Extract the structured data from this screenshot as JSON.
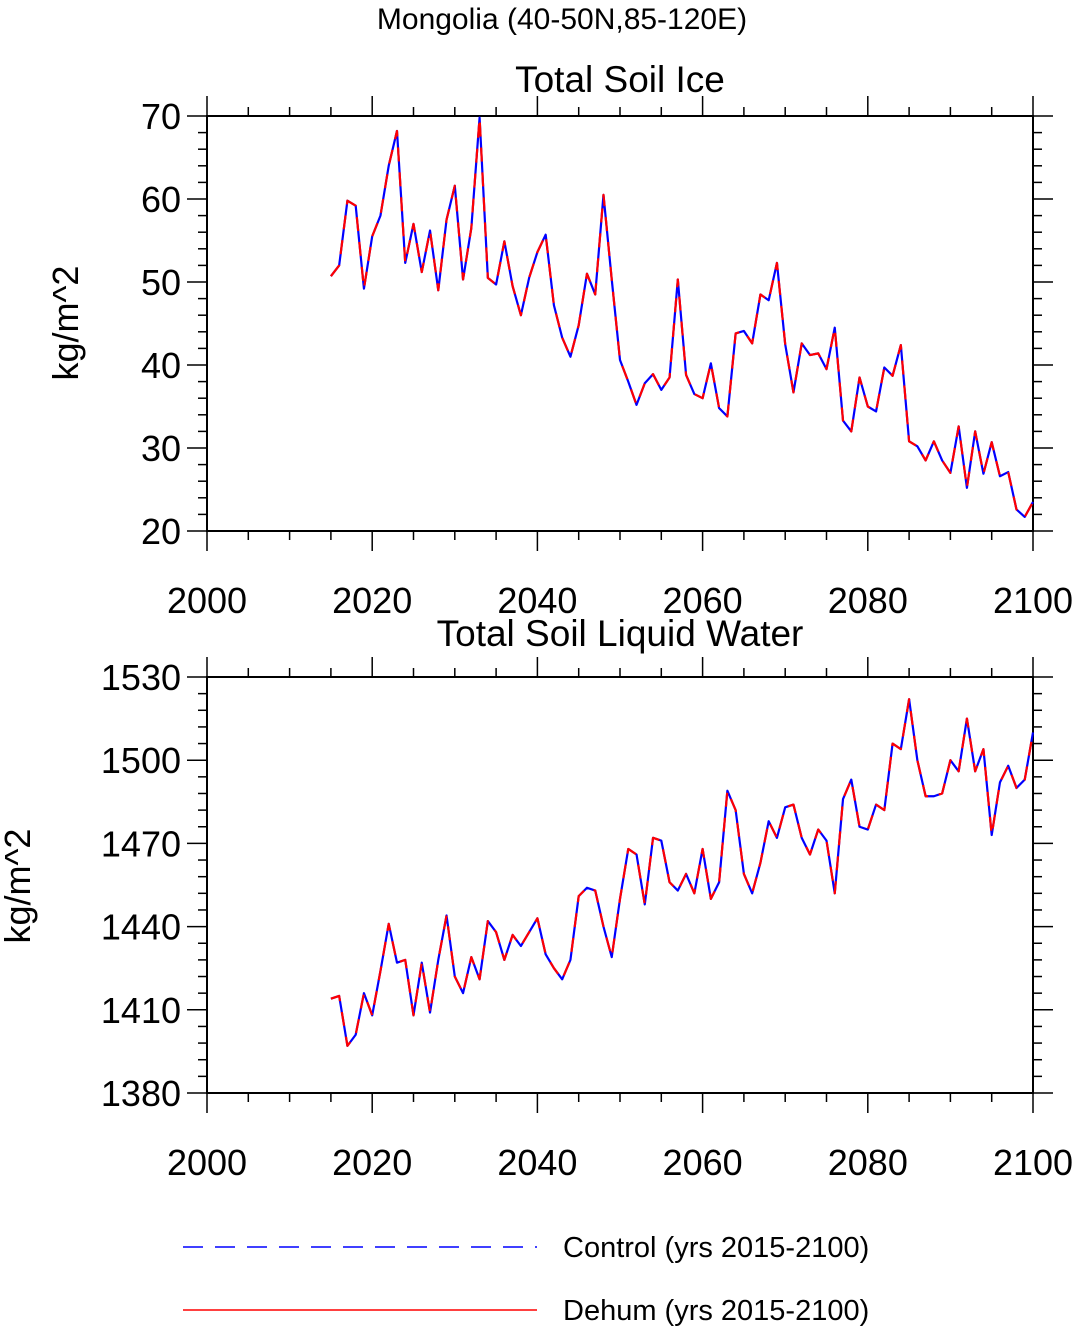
{
  "figure": {
    "title": "Mongolia (40-50N,85-120E)"
  },
  "legend": [
    {
      "label": "Control (yrs 2015-2100)",
      "color": "#0000ff",
      "style": "dashed"
    },
    {
      "label": "Dehum (yrs 2015-2100)",
      "color": "#ff0000",
      "style": "solid"
    }
  ],
  "chart_data": [
    {
      "type": "line",
      "title": "Total Soil Ice",
      "xlabel": "",
      "ylabel": "kg/m^2",
      "xlim": [
        2000,
        2100
      ],
      "ylim": [
        20,
        70
      ],
      "xticks": [
        2000,
        2020,
        2040,
        2060,
        2080,
        2100
      ],
      "yticks": [
        20,
        30,
        40,
        50,
        60,
        70
      ],
      "grid": false,
      "x_start": 2015,
      "x_end": 2100,
      "series": [
        {
          "name": "Control (yrs 2015-2100)",
          "color": "#0000ff",
          "style": "dashed",
          "values": [
            50.7,
            52.0,
            59.8,
            59.2,
            49.2,
            55.5,
            58.0,
            64.0,
            68.2,
            52.3,
            57.0,
            51.2,
            56.2,
            49.0,
            57.5,
            61.6,
            50.3,
            56.5,
            69.8,
            50.5,
            49.7,
            54.9,
            49.5,
            46.0,
            50.5,
            53.6,
            55.7,
            47.2,
            43.3,
            41.0,
            44.8,
            51.0,
            48.5,
            60.5,
            50.3,
            40.6,
            38.0,
            35.2,
            37.8,
            38.9,
            37.0,
            38.5,
            50.3,
            38.8,
            36.5,
            36.0,
            40.2,
            34.8,
            33.8,
            43.8,
            44.1,
            42.6,
            48.5,
            47.8,
            52.3,
            42.5,
            36.7,
            42.6,
            41.2,
            41.4,
            39.5,
            44.5,
            33.3,
            32.0,
            38.5,
            35.0,
            34.4,
            39.7,
            38.7,
            42.4,
            30.8,
            30.2,
            28.5,
            30.8,
            28.5,
            27.0,
            32.6,
            25.2,
            32.0,
            26.9,
            30.7,
            26.6,
            27.1,
            22.6,
            21.7,
            23.5
          ]
        },
        {
          "name": "Dehum (yrs 2015-2100)",
          "color": "#ff0000",
          "style": "solid",
          "values": [
            50.7,
            52.0,
            59.8,
            59.2,
            49.2,
            55.5,
            58.0,
            64.0,
            68.2,
            52.3,
            57.0,
            51.2,
            56.2,
            49.0,
            57.5,
            61.6,
            50.3,
            56.5,
            69.8,
            50.5,
            49.7,
            54.9,
            49.5,
            46.0,
            50.5,
            53.6,
            55.7,
            47.2,
            43.3,
            41.0,
            44.8,
            51.0,
            48.5,
            60.5,
            50.3,
            40.6,
            38.0,
            35.2,
            37.8,
            38.9,
            37.0,
            38.5,
            50.3,
            38.8,
            36.5,
            36.0,
            40.2,
            34.8,
            33.8,
            43.8,
            44.1,
            42.6,
            48.5,
            47.8,
            52.3,
            42.5,
            36.7,
            42.6,
            41.2,
            41.4,
            39.5,
            44.5,
            33.3,
            32.0,
            38.5,
            35.0,
            34.4,
            39.7,
            38.7,
            42.4,
            30.8,
            30.2,
            28.5,
            30.8,
            28.5,
            27.0,
            32.6,
            25.2,
            32.0,
            26.9,
            30.7,
            26.6,
            27.1,
            22.6,
            21.7,
            23.5
          ]
        }
      ]
    },
    {
      "type": "line",
      "title": "Total Soil Liquid Water",
      "xlabel": "",
      "ylabel": "kg/m^2",
      "xlim": [
        2000,
        2100
      ],
      "ylim": [
        1380,
        1530
      ],
      "xticks": [
        2000,
        2020,
        2040,
        2060,
        2080,
        2100
      ],
      "yticks": [
        1380,
        1410,
        1440,
        1470,
        1500,
        1530
      ],
      "grid": false,
      "x_start": 2015,
      "x_end": 2100,
      "series": [
        {
          "name": "Control (yrs 2015-2100)",
          "color": "#0000ff",
          "style": "dashed",
          "values": [
            1414,
            1415,
            1397,
            1401,
            1416,
            1408,
            1424,
            1441,
            1427,
            1428,
            1408,
            1427,
            1409,
            1428,
            1444,
            1422,
            1416,
            1429,
            1421,
            1442,
            1438,
            1428,
            1437,
            1433,
            1438,
            1443,
            1430,
            1425,
            1421,
            1428,
            1451,
            1454,
            1453,
            1440,
            1429,
            1450,
            1468,
            1466,
            1448,
            1472,
            1471,
            1456,
            1453,
            1459,
            1452,
            1468,
            1450,
            1456,
            1489,
            1482,
            1459,
            1452,
            1463,
            1478,
            1472,
            1483,
            1484,
            1472,
            1466,
            1475,
            1471,
            1452,
            1486,
            1493,
            1476,
            1475,
            1484,
            1482,
            1506,
            1504,
            1522,
            1500,
            1487,
            1487,
            1488,
            1500,
            1496,
            1515,
            1496,
            1504,
            1473,
            1492,
            1498,
            1490,
            1493,
            1510
          ]
        },
        {
          "name": "Dehum (yrs 2015-2100)",
          "color": "#ff0000",
          "style": "solid",
          "values": [
            1414,
            1415,
            1397,
            1401,
            1416,
            1408,
            1424,
            1441,
            1427,
            1428,
            1408,
            1427,
            1409,
            1428,
            1444,
            1422,
            1416,
            1429,
            1421,
            1442,
            1438,
            1428,
            1437,
            1433,
            1438,
            1443,
            1430,
            1425,
            1421,
            1428,
            1451,
            1454,
            1453,
            1440,
            1429,
            1450,
            1468,
            1466,
            1448,
            1472,
            1471,
            1456,
            1453,
            1459,
            1452,
            1468,
            1450,
            1456,
            1489,
            1482,
            1459,
            1452,
            1463,
            1478,
            1472,
            1483,
            1484,
            1472,
            1466,
            1475,
            1471,
            1452,
            1486,
            1493,
            1476,
            1475,
            1484,
            1482,
            1506,
            1504,
            1522,
            1500,
            1487,
            1487,
            1488,
            1500,
            1496,
            1515,
            1496,
            1504,
            1473,
            1492,
            1498,
            1490,
            1493,
            1510
          ]
        }
      ]
    }
  ]
}
